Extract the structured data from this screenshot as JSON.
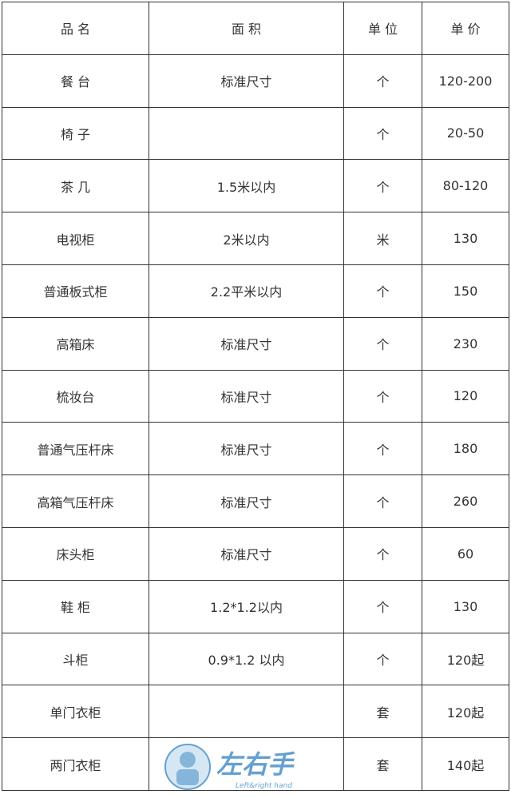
{
  "table": {
    "headers": [
      "品 名",
      "面 积",
      "单 位",
      "单 价"
    ],
    "rows": [
      [
        "餐 台",
        "标准尺寸",
        "个",
        "120-200"
      ],
      [
        "椅 子",
        "",
        "个",
        "20-50"
      ],
      [
        "茶 几",
        "1.5米以内",
        "个",
        "80-120"
      ],
      [
        "电视柜",
        "2米以内",
        "米",
        "130"
      ],
      [
        "普通板式柜",
        "2.2平米以内",
        "个",
        "150"
      ],
      [
        "高箱床",
        "标准尺寸",
        "个",
        "230"
      ],
      [
        "梳妆台",
        "标准尺寸",
        "个",
        "120"
      ],
      [
        "普通气压杆床",
        "标准尺寸",
        "个",
        "180"
      ],
      [
        "高箱气压杆床",
        "标准尺寸",
        "个",
        "260"
      ],
      [
        "床头柜",
        "标准尺寸",
        "个",
        "60"
      ],
      [
        "鞋 柜",
        "1.2*1.2以内",
        "个",
        "130"
      ],
      [
        "斗柜",
        "0.9*1.2 以内",
        "个",
        "120起"
      ],
      [
        "单门衣柜",
        "",
        "套",
        "120起"
      ],
      [
        "两门衣柜",
        "",
        "套",
        "140起"
      ]
    ]
  },
  "watermark": {
    "logo_text": "左右手",
    "subtitle": "Left&right hand",
    "color": "#4a90c8"
  }
}
